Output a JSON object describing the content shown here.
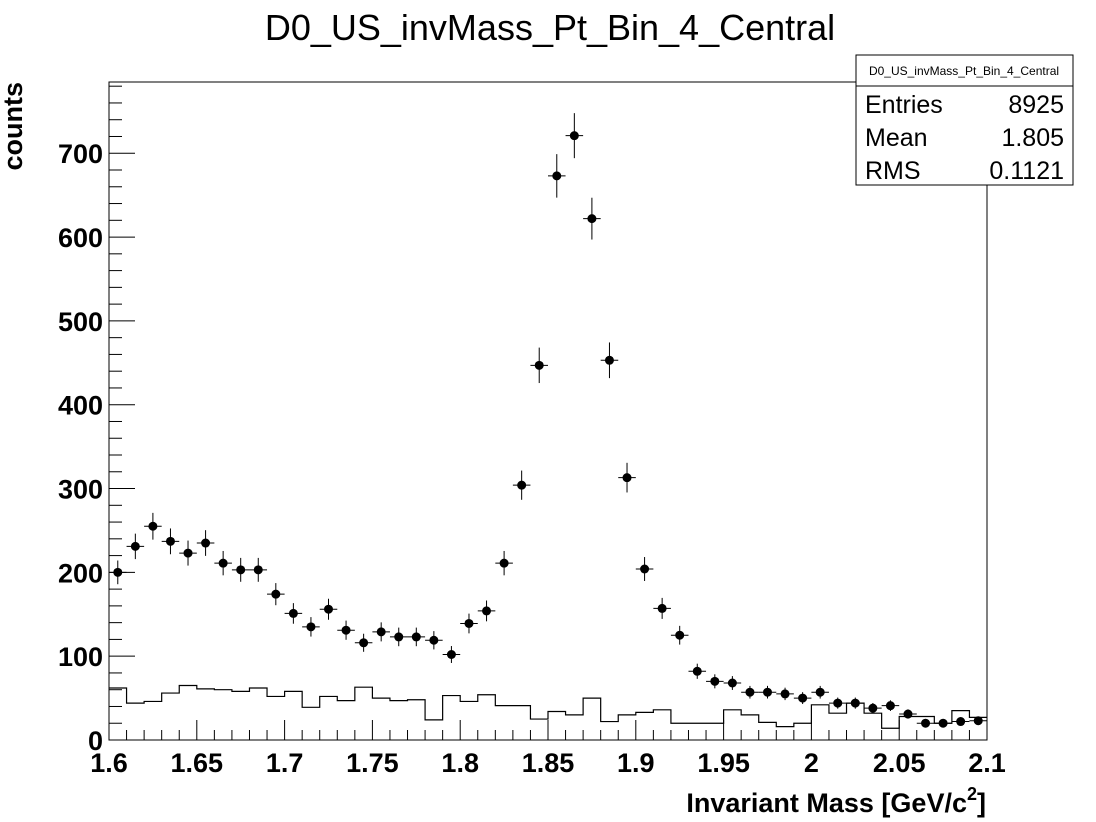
{
  "chart_data": {
    "type": "scatter",
    "title": "D0_US_invMass_Pt_Bin_4_Central",
    "xlabel": "Invariant Mass [GeV/c",
    "xlabel_sup": "2",
    "xlabel_end": "]",
    "ylabel": "counts",
    "xlim": [
      1.6,
      2.1
    ],
    "ylim": [
      0,
      785
    ],
    "x_ticks": [
      "1.6",
      "1.65",
      "1.7",
      "1.75",
      "1.8",
      "1.85",
      "1.9",
      "1.95",
      "2",
      "2.05",
      "2.1"
    ],
    "x_tick_values": [
      1.6,
      1.65,
      1.7,
      1.75,
      1.8,
      1.85,
      1.9,
      1.95,
      2.0,
      2.05,
      2.1
    ],
    "y_ticks": [
      "0",
      "100",
      "200",
      "300",
      "400",
      "500",
      "600",
      "700"
    ],
    "y_tick_values": [
      0,
      100,
      200,
      300,
      400,
      500,
      600,
      700
    ],
    "grid": false,
    "bin_width": 0.01,
    "series": [
      {
        "style": "points-with-errors",
        "x": [
          1.605,
          1.615,
          1.625,
          1.635,
          1.645,
          1.655,
          1.665,
          1.675,
          1.685,
          1.695,
          1.705,
          1.715,
          1.725,
          1.735,
          1.745,
          1.755,
          1.765,
          1.775,
          1.785,
          1.795,
          1.805,
          1.815,
          1.825,
          1.835,
          1.845,
          1.855,
          1.865,
          1.875,
          1.885,
          1.895,
          1.905,
          1.915,
          1.925,
          1.935,
          1.945,
          1.955,
          1.965,
          1.975,
          1.985,
          1.995,
          2.005,
          2.015,
          2.025,
          2.035,
          2.045,
          2.055,
          2.065,
          2.075,
          2.085,
          2.095
        ],
        "values": [
          200,
          231,
          255,
          237,
          223,
          235,
          211,
          203,
          203,
          174,
          151,
          135,
          156,
          131,
          116,
          129,
          123,
          123,
          119,
          102,
          139,
          154,
          211,
          304,
          447,
          673,
          721,
          622,
          453,
          313,
          204,
          157,
          125,
          82,
          70,
          68,
          57,
          57,
          55,
          50,
          57,
          44,
          44,
          38,
          41,
          31,
          20,
          20,
          22,
          23
        ]
      },
      {
        "style": "histogram-step",
        "x": [
          1.605,
          1.615,
          1.625,
          1.635,
          1.645,
          1.655,
          1.665,
          1.675,
          1.685,
          1.695,
          1.705,
          1.715,
          1.725,
          1.735,
          1.745,
          1.755,
          1.765,
          1.775,
          1.785,
          1.795,
          1.805,
          1.815,
          1.825,
          1.835,
          1.845,
          1.855,
          1.865,
          1.875,
          1.885,
          1.895,
          1.905,
          1.915,
          1.925,
          1.935,
          1.945,
          1.955,
          1.965,
          1.975,
          1.985,
          1.995,
          2.005,
          2.015,
          2.025,
          2.035,
          2.045,
          2.055,
          2.065,
          2.075,
          2.085,
          2.095
        ],
        "values": [
          62,
          44,
          46,
          56,
          65,
          61,
          60,
          58,
          62,
          52,
          58,
          39,
          52,
          47,
          63,
          50,
          47,
          48,
          24,
          53,
          46,
          54,
          41,
          41,
          25,
          34,
          30,
          50,
          22,
          30,
          33,
          36,
          20,
          20,
          20,
          36,
          30,
          21,
          16,
          20,
          42,
          32,
          44,
          32,
          14,
          28,
          28,
          20,
          35,
          27
        ]
      }
    ],
    "stats": {
      "name": "D0_US_invMass_Pt_Bin_4_Central",
      "rows": [
        {
          "label": "Entries",
          "value": "8925"
        },
        {
          "label": "Mean",
          "value": "1.805"
        },
        {
          "label": "RMS",
          "value": "0.1121"
        }
      ]
    }
  }
}
